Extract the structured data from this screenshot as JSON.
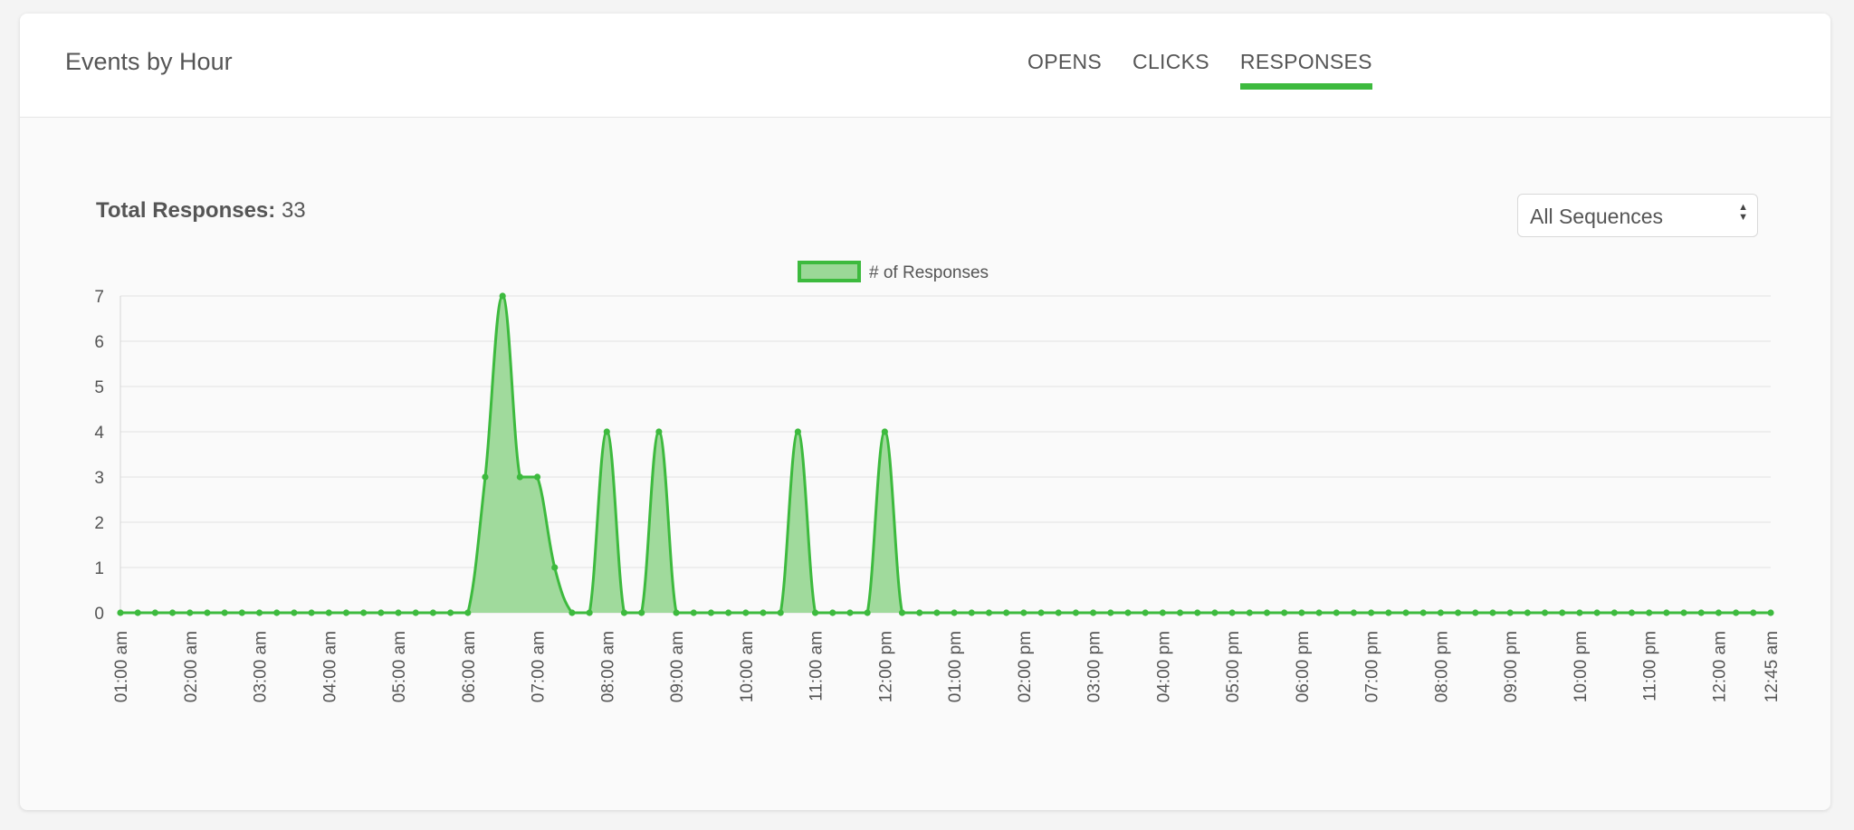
{
  "header": {
    "title": "Events by Hour",
    "tabs": [
      {
        "label": "OPENS",
        "active": false
      },
      {
        "label": "CLICKS",
        "active": false
      },
      {
        "label": "RESPONSES",
        "active": true
      }
    ]
  },
  "summary": {
    "total_label": "Total Responses:",
    "total_value": "33"
  },
  "filter": {
    "selected": "All Sequences"
  },
  "colors": {
    "accent": "#3dba3e",
    "fill": "#9bd897",
    "line": "#3dba3e",
    "grid": "#e2e2e2"
  },
  "chart_data": {
    "type": "area",
    "legend": "# of Responses",
    "legend_position": "top-center",
    "grid": true,
    "ylim": [
      0,
      7
    ],
    "yticks": [
      0,
      1,
      2,
      3,
      4,
      5,
      6,
      7
    ],
    "xtick_labels": [
      "01:00 am",
      "02:00 am",
      "03:00 am",
      "04:00 am",
      "05:00 am",
      "06:00 am",
      "07:00 am",
      "08:00 am",
      "09:00 am",
      "10:00 am",
      "11:00 am",
      "12:00 pm",
      "01:00 pm",
      "02:00 pm",
      "03:00 pm",
      "04:00 pm",
      "05:00 pm",
      "06:00 pm",
      "07:00 pm",
      "08:00 pm",
      "09:00 pm",
      "10:00 pm",
      "11:00 pm",
      "12:00 am",
      "12:45 am"
    ],
    "series": [
      {
        "name": "# of Responses",
        "values": [
          0,
          0,
          0,
          0,
          0,
          0,
          0,
          0,
          0,
          0,
          0,
          0,
          0,
          0,
          0,
          0,
          0,
          0,
          0,
          0,
          0,
          3,
          7,
          3,
          3,
          1,
          0,
          0,
          4,
          0,
          0,
          4,
          0,
          0,
          0,
          0,
          0,
          0,
          0,
          4,
          0,
          0,
          0,
          0,
          4,
          0,
          0,
          0,
          0,
          0,
          0,
          0,
          0,
          0,
          0,
          0,
          0,
          0,
          0,
          0,
          0,
          0,
          0,
          0,
          0,
          0,
          0,
          0,
          0,
          0,
          0,
          0,
          0,
          0,
          0,
          0,
          0,
          0,
          0,
          0,
          0,
          0,
          0,
          0,
          0,
          0,
          0,
          0,
          0,
          0,
          0,
          0,
          0,
          0,
          0,
          0
        ]
      }
    ]
  }
}
